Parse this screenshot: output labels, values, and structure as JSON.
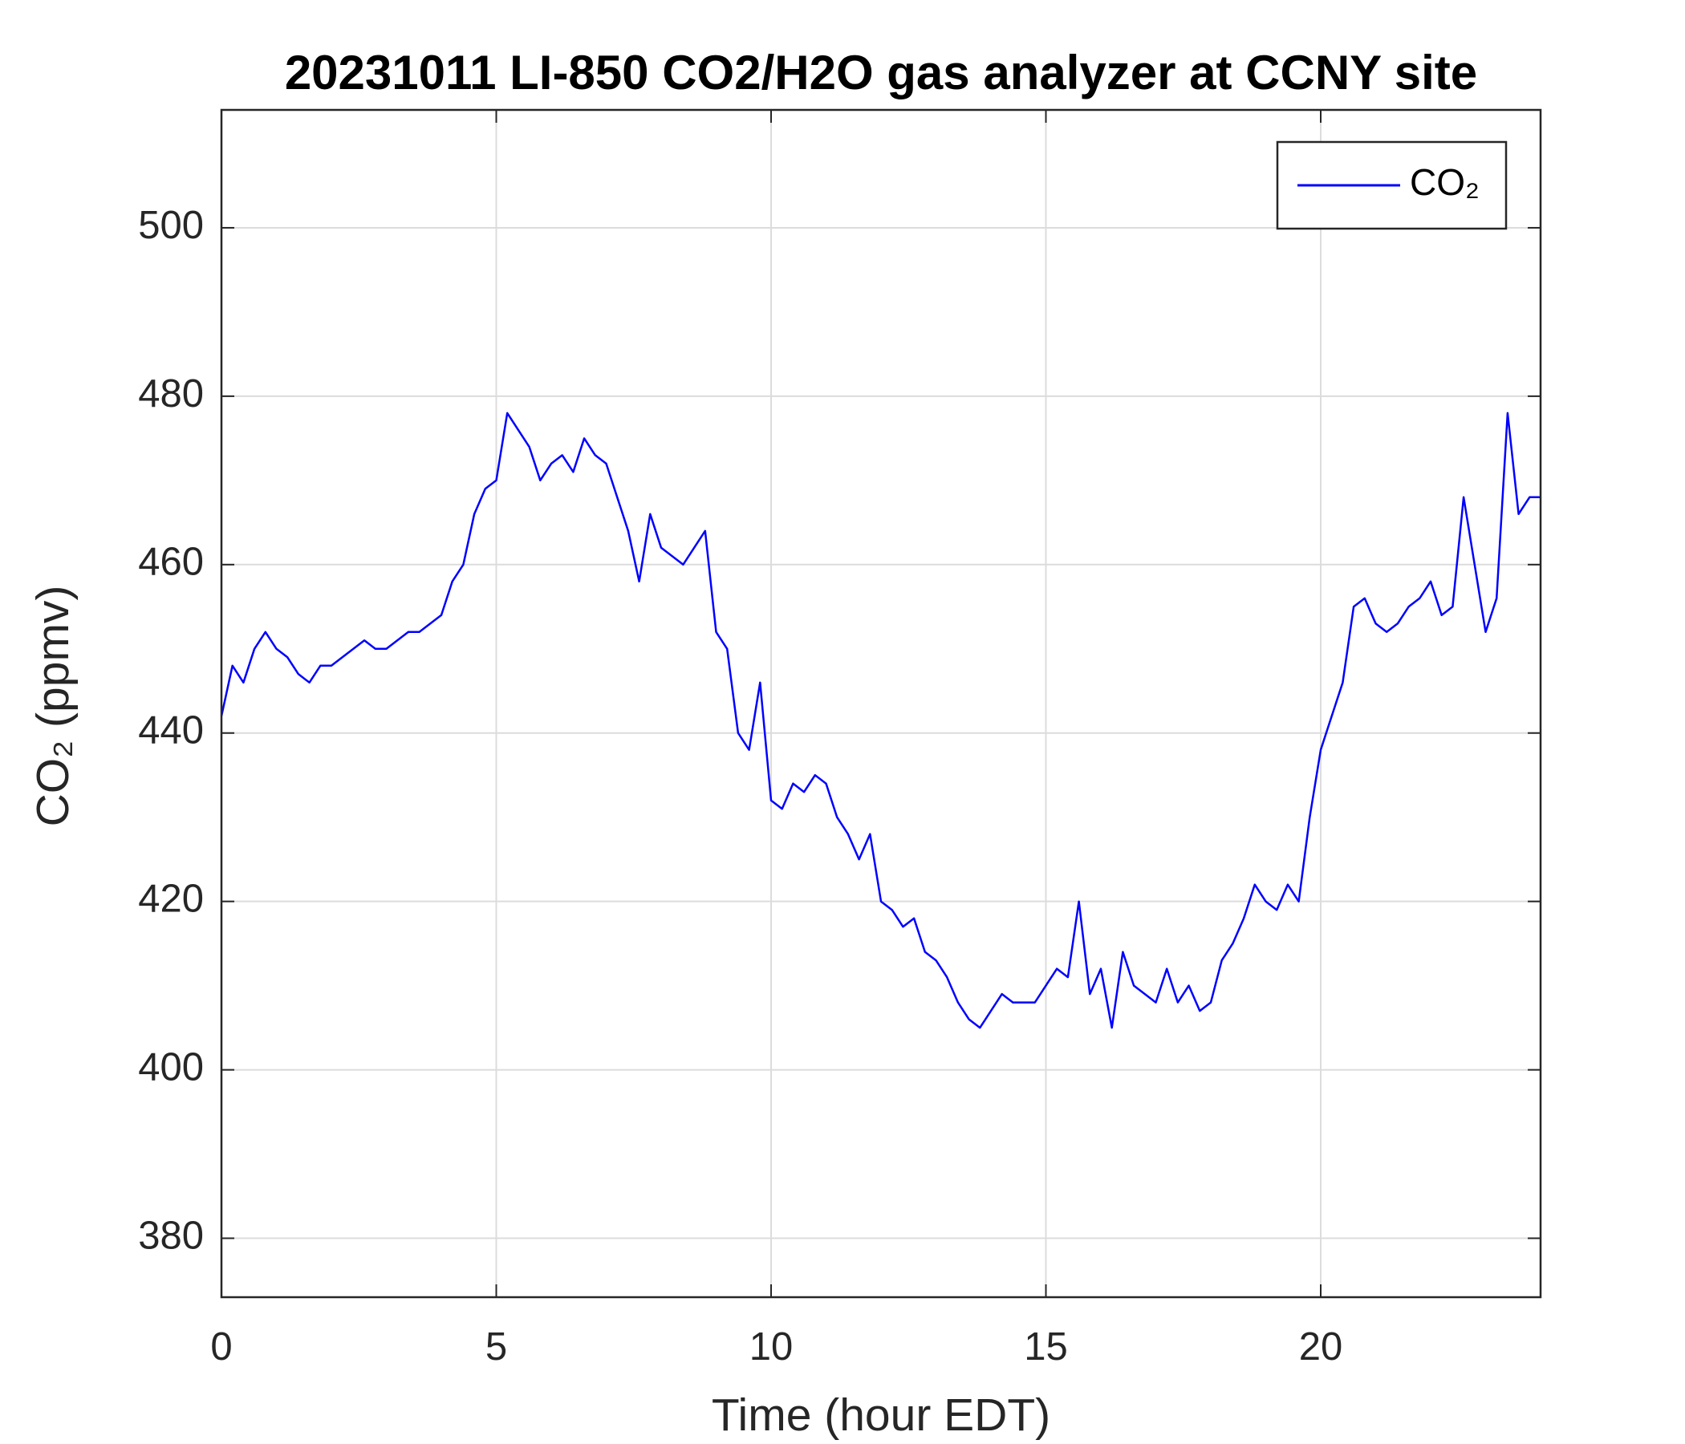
{
  "chart_data": {
    "type": "line",
    "title": "20231011 LI-850 CO2/H2O gas analyzer at CCNY site",
    "x_label": "Time (hour EDT)",
    "y_label": "CO₂ (ppmv)",
    "xlim": [
      0,
      24
    ],
    "xticks": [
      0,
      5,
      10,
      15,
      20
    ],
    "ylim": [
      373,
      514
    ],
    "yticks": [
      380,
      400,
      420,
      440,
      460,
      480,
      500
    ],
    "grid": true,
    "legend": "upper right",
    "x": [
      0,
      0.2,
      0.4,
      0.6,
      0.8,
      1,
      1.2,
      1.4,
      1.6,
      1.8,
      2,
      2.2,
      2.4,
      2.6,
      2.8,
      3,
      3.2,
      3.4,
      3.6,
      3.8,
      4,
      4.2,
      4.4,
      4.6,
      4.8,
      5,
      5.2,
      5.4,
      5.6,
      5.8,
      6,
      6.2,
      6.4,
      6.6,
      6.8,
      7,
      7.2,
      7.4,
      7.6,
      7.8,
      8,
      8.2,
      8.4,
      8.6,
      8.8,
      9,
      9.2,
      9.4,
      9.6,
      9.8,
      10,
      10.2,
      10.4,
      10.6,
      10.8,
      11,
      11.2,
      11.4,
      11.6,
      11.8,
      12,
      12.2,
      12.4,
      12.6,
      12.8,
      13,
      13.2,
      13.4,
      13.6,
      13.8,
      14,
      14.2,
      14.4,
      14.6,
      14.8,
      15,
      15.2,
      15.4,
      15.6,
      15.8,
      16,
      16.2,
      16.4,
      16.6,
      16.8,
      17,
      17.2,
      17.4,
      17.6,
      17.8,
      18,
      18.2,
      18.4,
      18.6,
      18.8,
      19,
      19.2,
      19.4,
      19.6,
      19.8,
      20,
      20.2,
      20.4,
      20.6,
      20.8,
      21,
      21.2,
      21.4,
      21.6,
      21.8,
      22,
      22.2,
      22.4,
      22.6,
      22.8,
      23,
      23.2,
      23.4,
      23.6,
      23.8,
      24
    ],
    "series": [
      {
        "name": "CO₂",
        "color": "#0000ff",
        "values": [
          442,
          448,
          446,
          450,
          452,
          450,
          449,
          447,
          446,
          448,
          448,
          449,
          450,
          451,
          450,
          450,
          451,
          452,
          452,
          453,
          454,
          458,
          460,
          466,
          469,
          470,
          478,
          476,
          474,
          470,
          472,
          473,
          471,
          475,
          473,
          472,
          468,
          464,
          458,
          466,
          462,
          461,
          460,
          462,
          464,
          452,
          450,
          440,
          438,
          446,
          432,
          431,
          434,
          433,
          435,
          434,
          430,
          428,
          425,
          428,
          420,
          419,
          417,
          418,
          414,
          413,
          411,
          408,
          406,
          405,
          407,
          409,
          408,
          408,
          408,
          410,
          412,
          411,
          420,
          409,
          412,
          405,
          414,
          410,
          409,
          408,
          412,
          408,
          410,
          407,
          408,
          413,
          415,
          418,
          422,
          420,
          419,
          422,
          420,
          430,
          438,
          442,
          446,
          455,
          456,
          453,
          452,
          453,
          455,
          456,
          458,
          454,
          455,
          468,
          460,
          452,
          456,
          478,
          466,
          468,
          468
        ]
      }
    ]
  }
}
